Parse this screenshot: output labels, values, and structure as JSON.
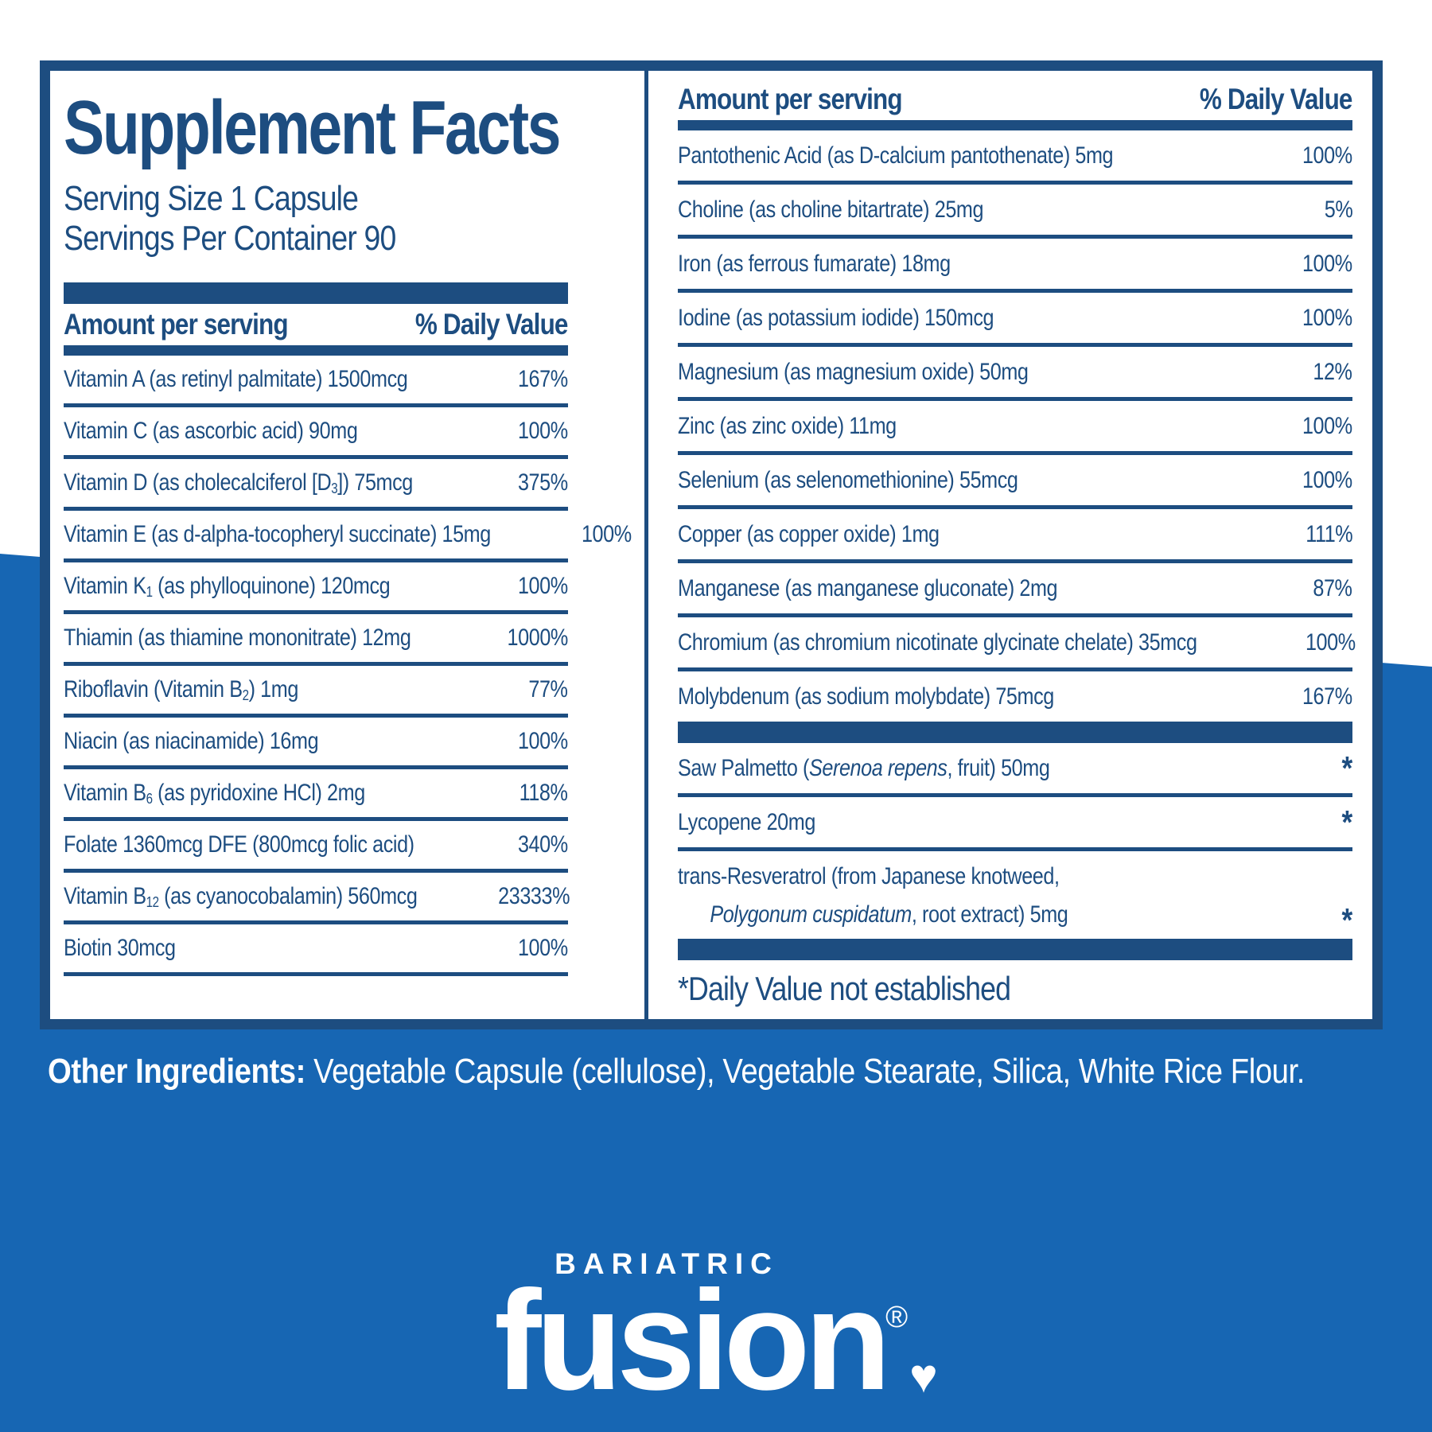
{
  "colors": {
    "navy_text": "#1d4d80",
    "background_blue": "#1766b3",
    "panel_white": "#ffffff"
  },
  "panel": {
    "title": "Supplement Facts",
    "serving_size": "Serving Size 1 Capsule",
    "servings_per_container": "Servings Per Container 90",
    "left": {
      "header_amount": "Amount per serving",
      "header_dv": "% Daily Value",
      "rows": [
        {
          "parts": [
            {
              "t": "Vitamin A (as retinyl palmitate) 1500mcg"
            }
          ],
          "dv": "167%"
        },
        {
          "parts": [
            {
              "t": "Vitamin C (as ascorbic acid) 90mg"
            }
          ],
          "dv": "100%"
        },
        {
          "parts": [
            {
              "t": "Vitamin D (as cholecalciferol [D"
            },
            {
              "t": "3",
              "sub": true
            },
            {
              "t": "]) 75mcg"
            }
          ],
          "dv": "375%"
        },
        {
          "parts": [
            {
              "t": "Vitamin E (as d-alpha-tocopheryl succinate) 15mg"
            }
          ],
          "dv": "100%"
        },
        {
          "parts": [
            {
              "t": "Vitamin K"
            },
            {
              "t": "1",
              "sub": true
            },
            {
              "t": " (as phylloquinone) 120mcg"
            }
          ],
          "dv": "100%"
        },
        {
          "parts": [
            {
              "t": "Thiamin (as thiamine mononitrate) 12mg"
            }
          ],
          "dv": "1000%"
        },
        {
          "parts": [
            {
              "t": "Riboflavin (Vitamin B"
            },
            {
              "t": "2",
              "sub": true
            },
            {
              "t": ") 1mg"
            }
          ],
          "dv": "77%"
        },
        {
          "parts": [
            {
              "t": "Niacin (as niacinamide) 16mg"
            }
          ],
          "dv": "100%"
        },
        {
          "parts": [
            {
              "t": "Vitamin B"
            },
            {
              "t": "6",
              "sub": true
            },
            {
              "t": " (as pyridoxine HCl) 2mg"
            }
          ],
          "dv": "118%"
        },
        {
          "parts": [
            {
              "t": "Folate 1360mcg DFE (800mcg folic acid)"
            }
          ],
          "dv": "340%"
        },
        {
          "parts": [
            {
              "t": "Vitamin B"
            },
            {
              "t": "12",
              "sub": true
            },
            {
              "t": " (as cyanocobalamin) 560mcg"
            }
          ],
          "dv": "23333%"
        },
        {
          "parts": [
            {
              "t": "Biotin 30mcg"
            }
          ],
          "dv": "100%"
        }
      ]
    },
    "right": {
      "header_amount": "Amount per serving",
      "header_dv": "% Daily Value",
      "rows": [
        {
          "parts": [
            {
              "t": "Pantothenic Acid (as D-calcium pantothenate) 5mg"
            }
          ],
          "dv": "100%"
        },
        {
          "parts": [
            {
              "t": "Choline (as choline bitartrate) 25mg"
            }
          ],
          "dv": "5%"
        },
        {
          "parts": [
            {
              "t": "Iron (as ferrous fumarate) 18mg"
            }
          ],
          "dv": "100%"
        },
        {
          "parts": [
            {
              "t": "Iodine (as potassium iodide) 150mcg"
            }
          ],
          "dv": "100%"
        },
        {
          "parts": [
            {
              "t": "Magnesium (as magnesium oxide) 50mg"
            }
          ],
          "dv": "12%"
        },
        {
          "parts": [
            {
              "t": "Zinc (as zinc oxide) 11mg"
            }
          ],
          "dv": "100%"
        },
        {
          "parts": [
            {
              "t": "Selenium (as selenomethionine) 55mcg"
            }
          ],
          "dv": "100%"
        },
        {
          "parts": [
            {
              "t": "Copper (as copper oxide) 1mg"
            }
          ],
          "dv": "111%"
        },
        {
          "parts": [
            {
              "t": "Manganese (as manganese gluconate) 2mg"
            }
          ],
          "dv": "87%"
        },
        {
          "parts": [
            {
              "t": "Chromium (as chromium nicotinate glycinate chelate) 35mcg"
            }
          ],
          "dv": "100%"
        },
        {
          "parts": [
            {
              "t": "Molybdenum (as sodium molybdate) 75mcg"
            }
          ],
          "dv": "167%"
        }
      ],
      "special_rows": [
        {
          "parts": [
            {
              "t": "Saw Palmetto ("
            },
            {
              "t": "Serenoa repens",
              "i": true
            },
            {
              "t": ", fruit) 50mg"
            }
          ],
          "dv": "*"
        },
        {
          "parts": [
            {
              "t": "Lycopene 20mg"
            }
          ],
          "dv": "*"
        },
        {
          "parts": [
            {
              "t": "trans-Resveratrol (from Japanese knotweed,"
            }
          ],
          "parts2": [
            {
              "t": "Polygonum cuspidatum",
              "i": true
            },
            {
              "t": ", root extract) 5mg"
            }
          ],
          "dv": "*"
        }
      ],
      "footnote": "*Daily Value not established"
    }
  },
  "other_ingredients": {
    "label": "Other Ingredients:",
    "text": " Vegetable Capsule (cellulose), Vegetable Stearate, Silica, White Rice Flour."
  },
  "logo": {
    "brand_top": "BARIATRIC",
    "brand_main": "fusion",
    "registered": "®",
    "heart_glyph": "♥"
  }
}
